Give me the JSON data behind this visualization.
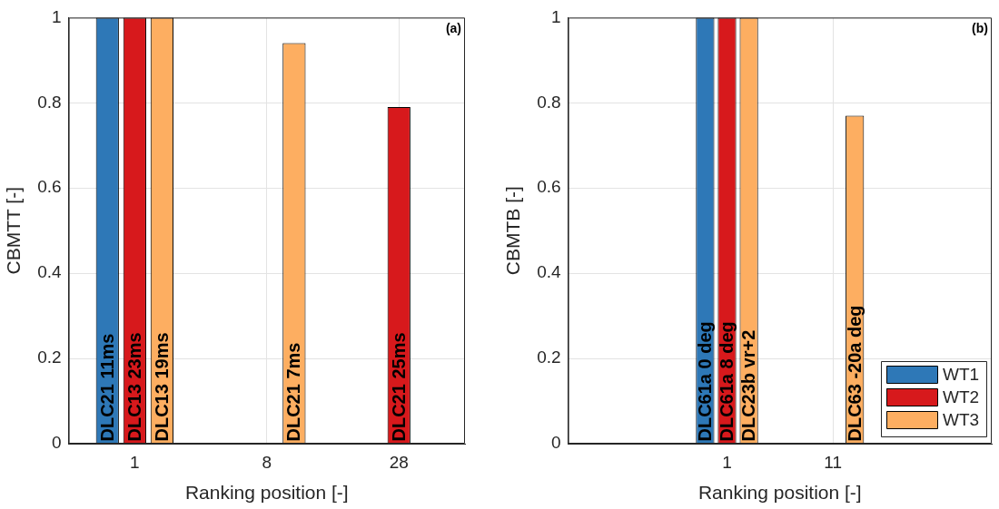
{
  "chart_data": [
    {
      "type": "bar",
      "ylabel": "CBMTT [-]",
      "xlabel": "Ranking position [-]",
      "categories": [
        "1",
        "8",
        "28"
      ],
      "ylim": [
        0,
        1
      ],
      "yticks": [
        0,
        0.2,
        0.4,
        0.6,
        0.8,
        1
      ],
      "grid": true,
      "legend": false,
      "annotations": [
        "(a)"
      ],
      "series": [
        {
          "color": "#2e78b7",
          "values": [
            1,
            null,
            null
          ],
          "value_labels": [
            "DLC21 11ms",
            null,
            null
          ]
        },
        {
          "color": "#d7191c",
          "values": [
            1,
            null,
            0.79
          ],
          "value_labels": [
            "DLC13 23ms",
            null,
            "DLC21 25ms"
          ]
        },
        {
          "color": "#fdae61",
          "values": [
            1,
            0.94,
            null
          ],
          "value_labels": [
            "DLC13 19ms",
            "DLC21 7ms",
            null
          ]
        }
      ]
    },
    {
      "type": "bar",
      "ylabel": "CBMTB [-]",
      "xlabel": "Ranking position [-]",
      "categories": [
        null,
        "1",
        "11",
        null
      ],
      "ylim": [
        0,
        1
      ],
      "yticks": [
        0,
        0.2,
        0.4,
        0.6,
        0.8,
        1
      ],
      "grid": true,
      "legend": "bottom right",
      "annotations": [
        "(b)"
      ],
      "series": [
        {
          "name": "WT1",
          "color": "#2e78b7",
          "values": [
            null,
            1,
            null,
            null
          ],
          "value_labels": [
            null,
            "DLC61a 0 deg",
            null,
            null
          ]
        },
        {
          "name": "WT2",
          "color": "#d7191c",
          "values": [
            null,
            1,
            null,
            null
          ],
          "value_labels": [
            null,
            "DLC61a 8 deg",
            null,
            null
          ]
        },
        {
          "name": "WT3",
          "color": "#fdae61",
          "values": [
            null,
            1,
            0.77,
            null
          ],
          "value_labels": [
            null,
            "DLC23b vr+2",
            "DLC63 -20a deg",
            null
          ]
        }
      ]
    }
  ]
}
